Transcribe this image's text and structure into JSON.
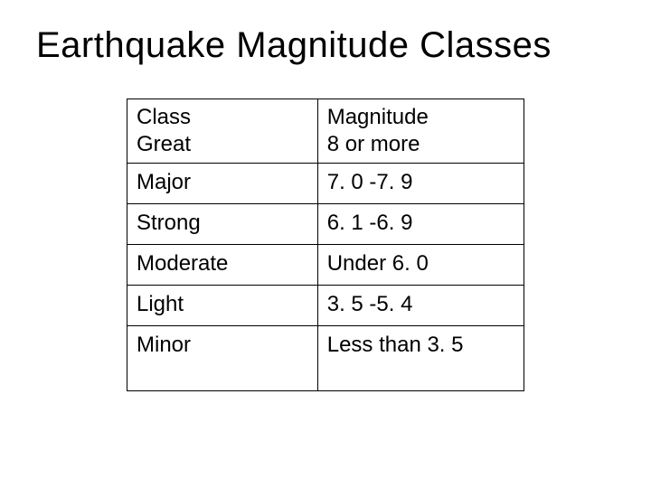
{
  "title": "Earthquake Magnitude Classes",
  "table": {
    "type": "table",
    "columns": [
      "Class",
      "Magnitude"
    ],
    "col_widths_pct": [
      48,
      52
    ],
    "border_color": "#000000",
    "background_color": "#ffffff",
    "text_color": "#000000",
    "cell_fontsize": 24,
    "title_fontsize": 40,
    "rows": [
      {
        "class": "Great",
        "magnitude": "8 or more"
      },
      {
        "class": "Major",
        "magnitude": "7. 0 -7. 9"
      },
      {
        "class": "Strong",
        "magnitude": "6. 1 -6. 9"
      },
      {
        "class": "Moderate",
        "magnitude": "Under 6. 0"
      },
      {
        "class": "Light",
        "magnitude": "3. 5 -5. 4"
      },
      {
        "class": "Minor",
        "magnitude": "Less than 3. 5"
      }
    ]
  }
}
